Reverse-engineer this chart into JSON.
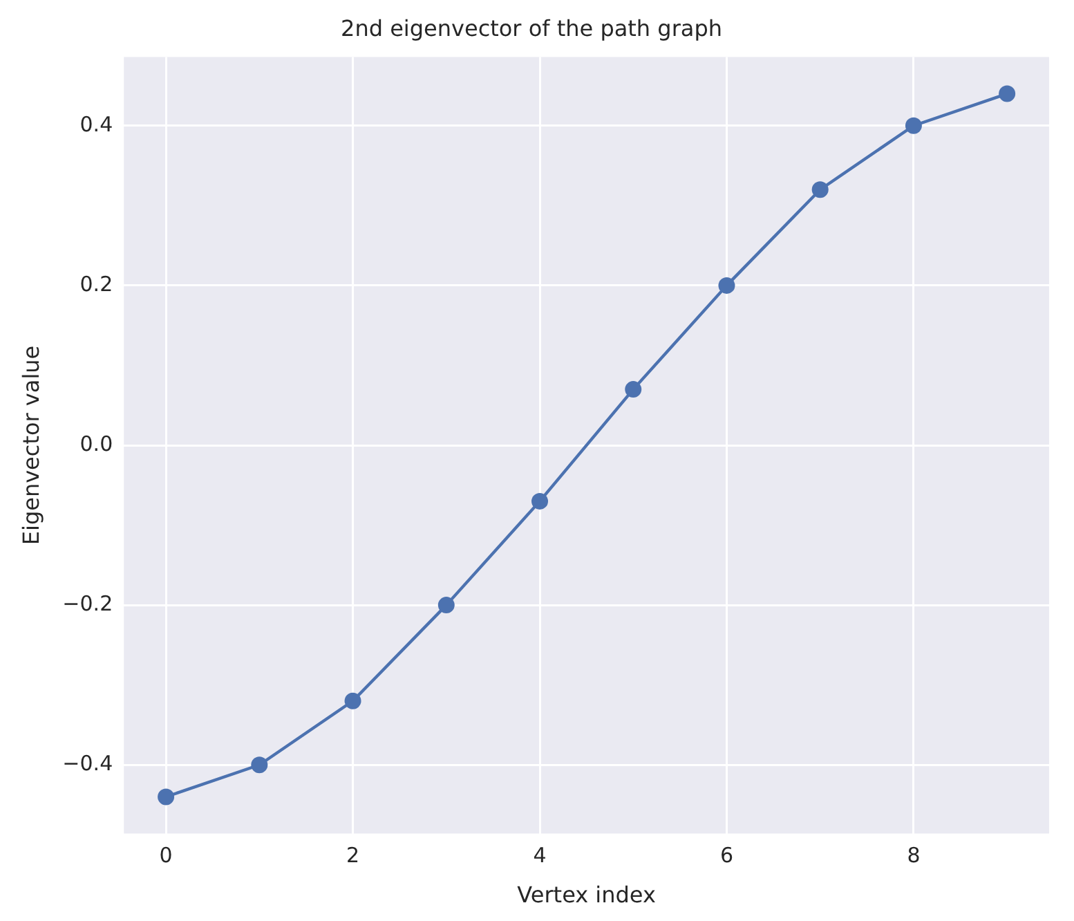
{
  "chart_data": {
    "type": "line",
    "title": "2nd eigenvector of the path graph",
    "xlabel": "Vertex index",
    "ylabel": "Eigenvector value",
    "x": [
      0,
      1,
      2,
      3,
      4,
      5,
      6,
      7,
      8,
      9
    ],
    "series": [
      {
        "color": "#4c72b0",
        "values": [
          -0.44,
          -0.4,
          -0.32,
          -0.2,
          -0.07,
          0.07,
          0.2,
          0.32,
          0.4,
          0.44
        ]
      }
    ],
    "xlim": [
      -0.45,
      9.45
    ],
    "xticks": [
      0,
      2,
      4,
      6,
      8
    ],
    "ylim": [
      -0.486,
      0.486
    ],
    "yticks": [
      {
        "value": -0.4,
        "label": "−0.4"
      },
      {
        "value": -0.2,
        "label": "−0.2"
      },
      {
        "value": 0,
        "label": "0.0"
      },
      {
        "value": 0.2,
        "label": "0.2"
      },
      {
        "value": 0.4,
        "label": "0.4"
      }
    ],
    "grid": true,
    "legend": false,
    "marker": "circle",
    "line_style": "solid"
  }
}
